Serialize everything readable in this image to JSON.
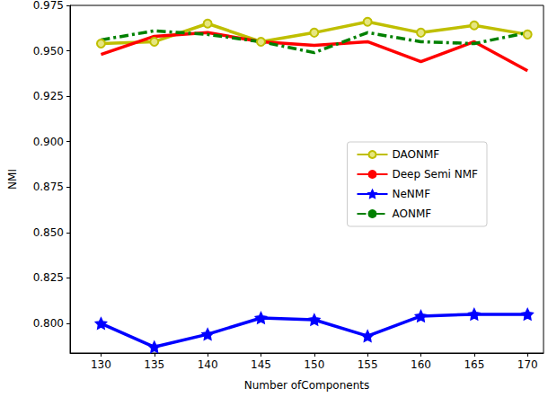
{
  "chart_data": {
    "type": "line",
    "x_label": "Number ofComponents",
    "y_label": "NMI",
    "x": [
      130,
      135,
      140,
      145,
      150,
      155,
      160,
      165,
      170
    ],
    "xlim": [
      127.1,
      171.5
    ],
    "xticks": [
      130,
      135,
      140,
      145,
      150,
      155,
      160,
      165,
      170
    ],
    "ylim": [
      0.7837,
      0.975
    ],
    "yticks": [
      {
        "value": 0.8,
        "label": "0.800"
      },
      {
        "value": 0.825,
        "label": "0.825"
      },
      {
        "value": 0.85,
        "label": "0.850"
      },
      {
        "value": 0.875,
        "label": "0.875"
      },
      {
        "value": 0.9,
        "label": "0.900"
      },
      {
        "value": 0.925,
        "label": "0.925"
      },
      {
        "value": 0.95,
        "label": "0.950"
      },
      {
        "value": 0.975,
        "label": "0.975"
      }
    ],
    "grid": false,
    "legend": "right",
    "series": [
      {
        "name": "DAONMF",
        "color": "#bfbf00",
        "marker": "circle",
        "line_style": "solid",
        "values": [
          0.954,
          0.955,
          0.965,
          0.955,
          0.96,
          0.966,
          0.96,
          0.964,
          0.959
        ]
      },
      {
        "name": "Deep Semi NMF",
        "color": "#ff0000",
        "marker": "none",
        "line_style": "solid",
        "values": [
          0.948,
          0.958,
          0.96,
          0.955,
          0.953,
          0.955,
          0.944,
          0.955,
          0.939
        ]
      },
      {
        "name": "NeNMF",
        "color": "#0000ff",
        "marker": "star",
        "line_style": "solid",
        "values": [
          0.8,
          0.787,
          0.794,
          0.803,
          0.802,
          0.793,
          0.804,
          0.805,
          0.805
        ]
      },
      {
        "name": "AONMF",
        "color": "#008000",
        "marker": "none",
        "line_style": "dashdot",
        "values": [
          0.956,
          0.961,
          0.959,
          0.955,
          0.949,
          0.96,
          0.955,
          0.954,
          0.96
        ]
      }
    ]
  }
}
